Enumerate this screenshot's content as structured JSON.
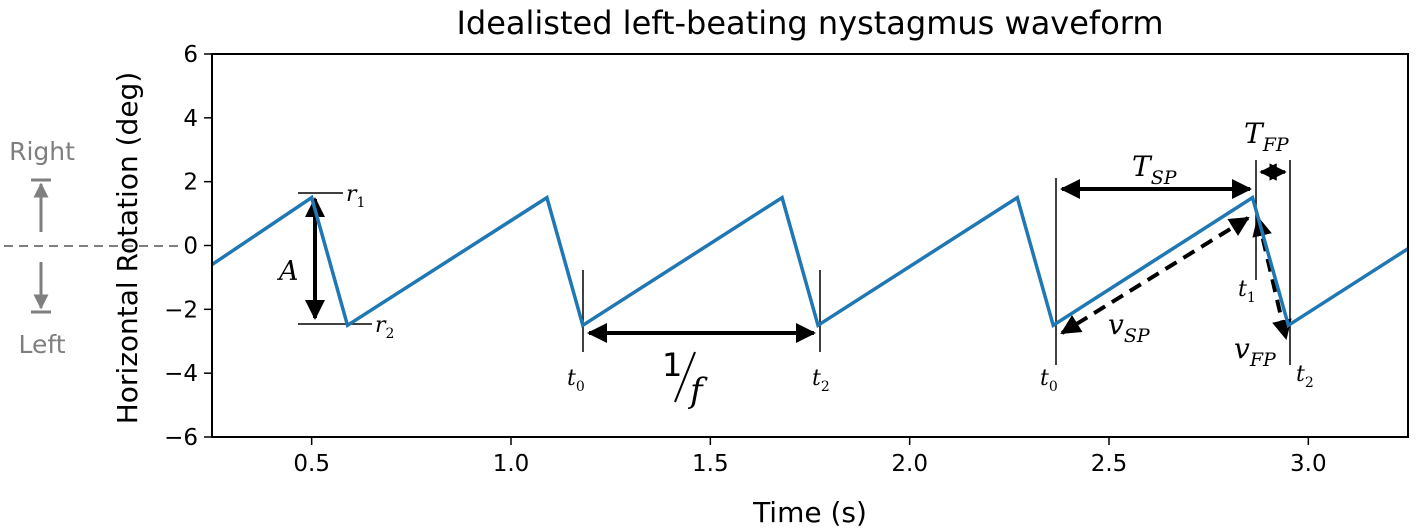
{
  "chart_data": {
    "type": "line",
    "title": "Idealisted left-beating nystagmus waveform",
    "xlabel": "Time (s)",
    "ylabel": "Horizontal Rotation (deg)",
    "xlim": [
      0.25,
      3.25
    ],
    "ylim": [
      -6,
      6
    ],
    "x_ticks": [
      0.5,
      1.0,
      1.5,
      2.0,
      2.5,
      3.0
    ],
    "x_tick_labels": [
      "0.5",
      "1.0",
      "1.5",
      "2.0",
      "2.5",
      "3.0"
    ],
    "y_ticks": [
      -6,
      -4,
      -2,
      0,
      2,
      4,
      6
    ],
    "y_tick_labels": [
      "−6",
      "−4",
      "−2",
      "0",
      "2",
      "4",
      "6"
    ],
    "grid": false,
    "series": [
      {
        "color": "#1f77b4",
        "x": [
          0.25,
          0.5,
          0.59,
          1.09,
          1.18,
          1.68,
          1.77,
          2.27,
          2.36,
          2.86,
          2.95,
          3.25
        ],
        "y": [
          -0.6,
          1.5,
          -2.5,
          1.5,
          -2.5,
          1.5,
          -2.5,
          1.5,
          -2.5,
          1.5,
          -2.5,
          -0.1
        ]
      }
    ],
    "side_labels": {
      "top": "Right",
      "bottom": "Left"
    },
    "annotations": {
      "r1": "r",
      "r1_sub": "1",
      "r2": "r",
      "r2_sub": "2",
      "A": "A",
      "t0": "t",
      "t0_sub": "0",
      "t1": "t",
      "t1_sub": "1",
      "t2": "t",
      "t2_sub": "2",
      "freq_num": "1",
      "freq_den": "f",
      "tsp": "T",
      "tsp_sub": "SP",
      "tfp": "T",
      "tfp_sub": "FP",
      "vsp": "v",
      "vsp_sub": "SP",
      "vfp": "v",
      "vfp_sub": "FP"
    },
    "colors": {
      "line": "#1f77b4",
      "side_arrow": "#7f7f7f",
      "axis": "#000000"
    }
  }
}
